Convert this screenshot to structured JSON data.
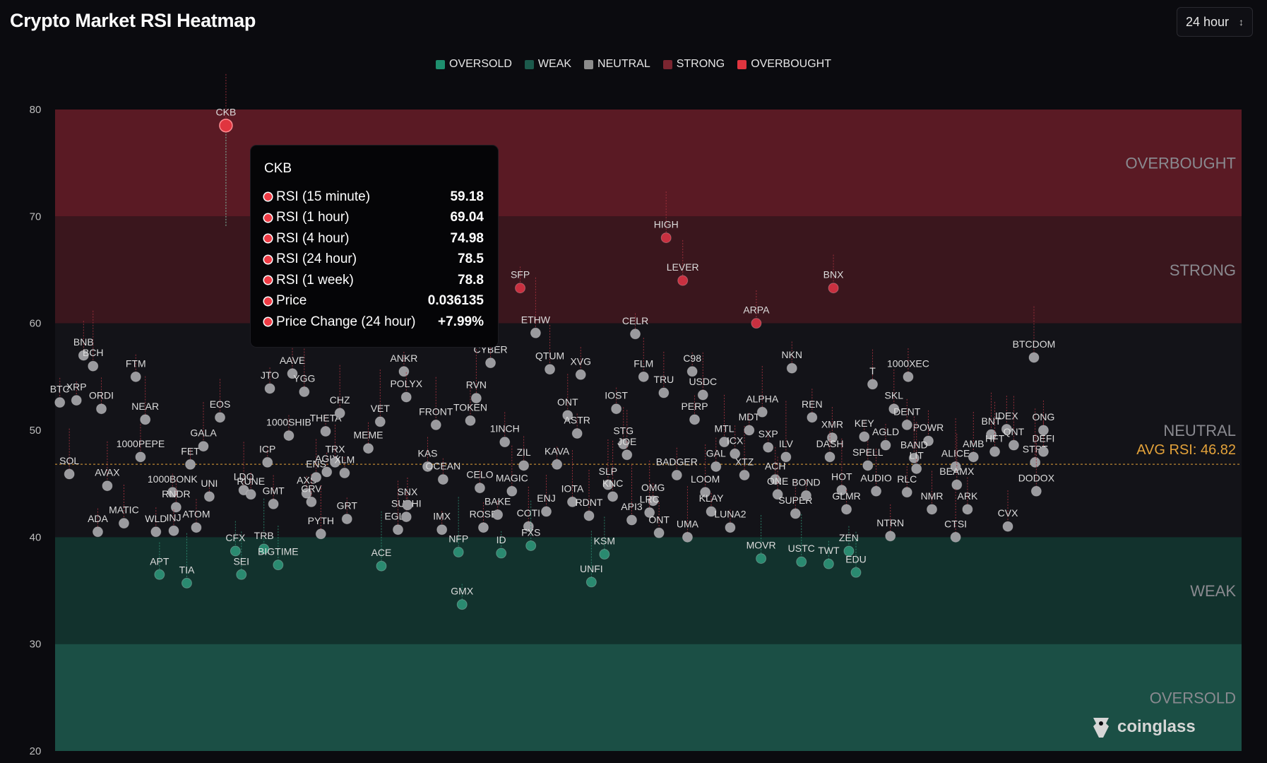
{
  "title": "Crypto Market RSI Heatmap",
  "period_selector": {
    "value": "24 hour"
  },
  "legend": [
    {
      "label": "OVERSOLD",
      "color": "#1e8f6e"
    },
    {
      "label": "WEAK",
      "color": "#1c5a4c"
    },
    {
      "label": "NEUTRAL",
      "color": "#8c8c8c"
    },
    {
      "label": "STRONG",
      "color": "#7a2530"
    },
    {
      "label": "OVERBOUGHT",
      "color": "#e0353f"
    }
  ],
  "tooltip": {
    "title": "CKB",
    "rows": [
      {
        "label": "RSI (15 minute)",
        "value": "59.18"
      },
      {
        "label": "RSI (1 hour)",
        "value": "69.04"
      },
      {
        "label": "RSI (4 hour)",
        "value": "74.98"
      },
      {
        "label": "RSI (24 hour)",
        "value": "78.5"
      },
      {
        "label": "RSI (1 week)",
        "value": "78.8"
      },
      {
        "label": "Price",
        "value": "0.036135"
      },
      {
        "label": "Price Change (24 hour)",
        "value": "+7.99%"
      }
    ]
  },
  "watermark": "coinglass",
  "chart_data": {
    "type": "scatter",
    "ylim": [
      20,
      80
    ],
    "yticks": [
      80,
      70,
      60,
      50,
      40,
      30,
      20
    ],
    "zones": [
      {
        "label": "OVERBOUGHT",
        "from": 70,
        "to": 80,
        "color": "#5a1a24"
      },
      {
        "label": "STRONG",
        "from": 60,
        "to": 70,
        "color": "#3a161d"
      },
      {
        "label": "NEUTRAL",
        "from": 40,
        "to": 60,
        "color": "#131318"
      },
      {
        "label": "WEAK",
        "from": 30,
        "to": 40,
        "color": "#12322d"
      },
      {
        "label": "OVERSOLD",
        "from": 20,
        "to": 30,
        "color": "#1b4f45"
      }
    ],
    "average": {
      "label": "AVG RSI:",
      "value": 46.82,
      "color": "#e3a23a"
    },
    "x_range": [
      0,
      100
    ],
    "points": [
      {
        "n": "CKB",
        "x": 14.4,
        "y": 78.5
      },
      {
        "n": "BTC",
        "x": 0.4,
        "y": 52.6
      },
      {
        "n": "XRP",
        "x": 1.8,
        "y": 52.8
      },
      {
        "n": "BNB",
        "x": 2.4,
        "y": 57.0
      },
      {
        "n": "BCH",
        "x": 3.2,
        "y": 56.0
      },
      {
        "n": "ORDI",
        "x": 3.9,
        "y": 52.0
      },
      {
        "n": "SOL",
        "x": 1.2,
        "y": 45.9
      },
      {
        "n": "AVAX",
        "x": 4.4,
        "y": 44.8
      },
      {
        "n": "ADA",
        "x": 3.6,
        "y": 40.5
      },
      {
        "n": "MATIC",
        "x": 5.8,
        "y": 41.3
      },
      {
        "n": "FTM",
        "x": 6.8,
        "y": 55.0
      },
      {
        "n": "NEAR",
        "x": 7.6,
        "y": 51.0
      },
      {
        "n": "1000PEPE",
        "x": 7.2,
        "y": 47.5
      },
      {
        "n": "1000BONK",
        "x": 9.9,
        "y": 44.2
      },
      {
        "n": "RNDR",
        "x": 10.2,
        "y": 42.8
      },
      {
        "n": "INJ",
        "x": 10.0,
        "y": 40.6
      },
      {
        "n": "WLD",
        "x": 8.5,
        "y": 40.5
      },
      {
        "n": "APT",
        "x": 8.8,
        "y": 36.5
      },
      {
        "n": "TIA",
        "x": 11.1,
        "y": 35.7
      },
      {
        "n": "ATOM",
        "x": 11.9,
        "y": 40.9
      },
      {
        "n": "UNI",
        "x": 13.0,
        "y": 43.8
      },
      {
        "n": "FET",
        "x": 11.4,
        "y": 46.8
      },
      {
        "n": "GALA",
        "x": 12.5,
        "y": 48.5
      },
      {
        "n": "EOS",
        "x": 13.9,
        "y": 51.2
      },
      {
        "n": "CFX",
        "x": 15.2,
        "y": 38.7
      },
      {
        "n": "SEI",
        "x": 15.7,
        "y": 36.5
      },
      {
        "n": "LDO",
        "x": 15.9,
        "y": 44.4
      },
      {
        "n": "RUNE",
        "x": 16.5,
        "y": 44.0
      },
      {
        "n": "TRB",
        "x": 17.6,
        "y": 38.9
      },
      {
        "n": "GMT",
        "x": 18.4,
        "y": 43.1
      },
      {
        "n": "ICP",
        "x": 17.9,
        "y": 47.0
      },
      {
        "n": "JTO",
        "x": 18.1,
        "y": 53.9
      },
      {
        "n": "1000SHIB",
        "x": 19.7,
        "y": 49.5
      },
      {
        "n": "BIGTIME",
        "x": 18.8,
        "y": 37.4
      },
      {
        "n": "AAVE",
        "x": 20.0,
        "y": 55.3
      },
      {
        "n": "YGG",
        "x": 21.0,
        "y": 53.6
      },
      {
        "n": "AXS",
        "x": 21.2,
        "y": 44.1
      },
      {
        "n": "CRV",
        "x": 21.6,
        "y": 43.3
      },
      {
        "n": "PYTH",
        "x": 22.4,
        "y": 40.3
      },
      {
        "n": "ENS",
        "x": 22.0,
        "y": 45.6
      },
      {
        "n": "AGIX",
        "x": 22.9,
        "y": 46.1
      },
      {
        "n": "THETA",
        "x": 22.8,
        "y": 49.9
      },
      {
        "n": "TRX",
        "x": 23.6,
        "y": 47.0
      },
      {
        "n": "XLM",
        "x": 24.4,
        "y": 46.0
      },
      {
        "n": "CHZ",
        "x": 24.0,
        "y": 51.6
      },
      {
        "n": "GRT",
        "x": 24.6,
        "y": 41.7
      },
      {
        "n": "MEME",
        "x": 26.4,
        "y": 48.3
      },
      {
        "n": "VET",
        "x": 27.4,
        "y": 50.8
      },
      {
        "n": "ACE",
        "x": 27.5,
        "y": 37.3
      },
      {
        "n": "EGLD",
        "x": 28.9,
        "y": 40.7
      },
      {
        "n": "SUSHI",
        "x": 29.6,
        "y": 41.9
      },
      {
        "n": "SNX",
        "x": 29.7,
        "y": 43.0
      },
      {
        "n": "KAS",
        "x": 31.4,
        "y": 46.6
      },
      {
        "n": "OCEAN",
        "x": 32.7,
        "y": 45.4
      },
      {
        "n": "ANKR",
        "x": 29.4,
        "y": 55.5
      },
      {
        "n": "POLYX",
        "x": 29.6,
        "y": 53.1
      },
      {
        "n": "FRONT",
        "x": 32.1,
        "y": 50.5
      },
      {
        "n": "TOKEN",
        "x": 35.0,
        "y": 50.9
      },
      {
        "n": "IMX",
        "x": 32.6,
        "y": 40.7
      },
      {
        "n": "NFP",
        "x": 34.0,
        "y": 38.6
      },
      {
        "n": "GMX",
        "x": 34.3,
        "y": 33.7
      },
      {
        "n": "CELO",
        "x": 35.8,
        "y": 44.6
      },
      {
        "n": "ROSE",
        "x": 36.1,
        "y": 40.9
      },
      {
        "n": "ID",
        "x": 37.6,
        "y": 38.5
      },
      {
        "n": "BAKE",
        "x": 37.3,
        "y": 42.1
      },
      {
        "n": "MAGIC",
        "x": 38.5,
        "y": 44.3
      },
      {
        "n": "COTI",
        "x": 39.9,
        "y": 41.0
      },
      {
        "n": "FXS",
        "x": 40.1,
        "y": 39.2
      },
      {
        "n": "ZIL",
        "x": 39.5,
        "y": 46.7
      },
      {
        "n": "1INCH",
        "x": 37.9,
        "y": 48.9
      },
      {
        "n": "CYBER",
        "x": 36.7,
        "y": 56.3
      },
      {
        "n": "RVN",
        "x": 35.5,
        "y": 53.0
      },
      {
        "n": "SFP",
        "x": 39.2,
        "y": 63.3
      },
      {
        "n": "ETHW",
        "x": 40.5,
        "y": 59.1
      },
      {
        "n": "QTUM",
        "x": 41.7,
        "y": 55.7
      },
      {
        "n": "XVG",
        "x": 44.3,
        "y": 55.2
      },
      {
        "n": "ONT",
        "x": 43.2,
        "y": 51.4
      },
      {
        "n": "ASTR",
        "x": 44.0,
        "y": 49.7
      },
      {
        "n": "KAVA",
        "x": 42.3,
        "y": 46.8
      },
      {
        "n": "ENJ",
        "x": 41.4,
        "y": 42.4
      },
      {
        "n": "IOTA",
        "x": 43.6,
        "y": 43.3
      },
      {
        "n": "RDNT",
        "x": 45.0,
        "y": 42.0
      },
      {
        "n": "UNFI",
        "x": 45.2,
        "y": 35.8
      },
      {
        "n": "KSM",
        "x": 46.3,
        "y": 38.4
      },
      {
        "n": "SLP",
        "x": 46.6,
        "y": 44.9
      },
      {
        "n": "KNC",
        "x": 47.0,
        "y": 43.8
      },
      {
        "n": "API3",
        "x": 48.6,
        "y": 41.6
      },
      {
        "n": "STG",
        "x": 47.9,
        "y": 48.7
      },
      {
        "n": "JOE",
        "x": 48.2,
        "y": 47.7
      },
      {
        "n": "IOST",
        "x": 47.3,
        "y": 52.0
      },
      {
        "n": "CELR",
        "x": 48.9,
        "y": 59.0
      },
      {
        "n": "FLM",
        "x": 49.6,
        "y": 55.0
      },
      {
        "n": "TRU",
        "x": 51.3,
        "y": 53.5
      },
      {
        "n": "OMG",
        "x": 50.4,
        "y": 43.4
      },
      {
        "n": "LRC",
        "x": 50.1,
        "y": 42.3
      },
      {
        "n": "ONT2",
        "x": 50.9,
        "y": 40.4
      },
      {
        "n": "HIGH",
        "x": 51.5,
        "y": 68.0
      },
      {
        "n": "LEVER",
        "x": 52.9,
        "y": 64.0
      },
      {
        "n": "C98",
        "x": 53.7,
        "y": 55.5
      },
      {
        "n": "USDC",
        "x": 54.6,
        "y": 53.3
      },
      {
        "n": "PERP",
        "x": 53.9,
        "y": 51.0
      },
      {
        "n": "BADGER",
        "x": 52.4,
        "y": 45.8
      },
      {
        "n": "UMA",
        "x": 53.3,
        "y": 40.0
      },
      {
        "n": "LOOM",
        "x": 54.8,
        "y": 44.2
      },
      {
        "n": "KLAY",
        "x": 55.3,
        "y": 42.4
      },
      {
        "n": "LUNA2",
        "x": 56.9,
        "y": 40.9
      },
      {
        "n": "GAL",
        "x": 55.7,
        "y": 46.6
      },
      {
        "n": "MTL",
        "x": 56.4,
        "y": 48.9
      },
      {
        "n": "ICX",
        "x": 57.3,
        "y": 47.8
      },
      {
        "n": "XTZ",
        "x": 58.1,
        "y": 45.8
      },
      {
        "n": "MDT",
        "x": 58.5,
        "y": 50.0
      },
      {
        "n": "ALPHA",
        "x": 59.6,
        "y": 51.7
      },
      {
        "n": "SXP",
        "x": 60.1,
        "y": 48.4
      },
      {
        "n": "ARPA",
        "x": 59.1,
        "y": 60.0
      },
      {
        "n": "NKN",
        "x": 62.1,
        "y": 55.8
      },
      {
        "n": "ILV",
        "x": 61.6,
        "y": 47.5
      },
      {
        "n": "ACH",
        "x": 60.7,
        "y": 45.4
      },
      {
        "n": "ONE",
        "x": 60.9,
        "y": 44.0
      },
      {
        "n": "MOVR",
        "x": 59.5,
        "y": 38.0
      },
      {
        "n": "SUPER",
        "x": 62.4,
        "y": 42.2
      },
      {
        "n": "BOND",
        "x": 63.3,
        "y": 43.9
      },
      {
        "n": "USTC",
        "x": 62.9,
        "y": 37.7
      },
      {
        "n": "TWT",
        "x": 65.2,
        "y": 37.5
      },
      {
        "n": "REN",
        "x": 63.8,
        "y": 51.2
      },
      {
        "n": "XMR",
        "x": 65.5,
        "y": 49.3
      },
      {
        "n": "DASH",
        "x": 65.3,
        "y": 47.5
      },
      {
        "n": "BNX",
        "x": 65.6,
        "y": 63.3
      },
      {
        "n": "HOT",
        "x": 66.3,
        "y": 44.4
      },
      {
        "n": "GLMR",
        "x": 66.7,
        "y": 42.6
      },
      {
        "n": "ZEN",
        "x": 66.9,
        "y": 38.7
      },
      {
        "n": "EDU",
        "x": 67.5,
        "y": 36.7
      },
      {
        "n": "KEY",
        "x": 68.2,
        "y": 49.4
      },
      {
        "n": "SPELL",
        "x": 68.5,
        "y": 46.7
      },
      {
        "n": "T",
        "x": 68.9,
        "y": 54.3
      },
      {
        "n": "AGLD",
        "x": 70.0,
        "y": 48.6
      },
      {
        "n": "AUDIO",
        "x": 69.2,
        "y": 44.3
      },
      {
        "n": "NTRN",
        "x": 70.4,
        "y": 40.1
      },
      {
        "n": "SKL",
        "x": 70.7,
        "y": 52.0
      },
      {
        "n": "1000XEC",
        "x": 71.9,
        "y": 55.0
      },
      {
        "n": "DENT",
        "x": 71.8,
        "y": 50.5
      },
      {
        "n": "POWR",
        "x": 73.6,
        "y": 49.0
      },
      {
        "n": "BAND",
        "x": 72.4,
        "y": 47.4
      },
      {
        "n": "RLC",
        "x": 71.8,
        "y": 44.2
      },
      {
        "n": "LIT",
        "x": 72.6,
        "y": 46.4
      },
      {
        "n": "NMR",
        "x": 73.9,
        "y": 42.6
      },
      {
        "n": "ALICE",
        "x": 75.9,
        "y": 46.6
      },
      {
        "n": "BEAMX",
        "x": 76.0,
        "y": 44.9
      },
      {
        "n": "ARK",
        "x": 76.9,
        "y": 42.6
      },
      {
        "n": "CTSI",
        "x": 75.9,
        "y": 40.0
      },
      {
        "n": "AMB",
        "x": 77.4,
        "y": 47.5
      },
      {
        "n": "BNT",
        "x": 78.9,
        "y": 49.6
      },
      {
        "n": "HFT",
        "x": 79.2,
        "y": 48.0
      },
      {
        "n": "IDEX",
        "x": 80.2,
        "y": 50.1
      },
      {
        "n": "QNT",
        "x": 80.8,
        "y": 48.6
      },
      {
        "n": "STPT",
        "x": 82.6,
        "y": 47.0
      },
      {
        "n": "DEFI",
        "x": 83.3,
        "y": 48.0
      },
      {
        "n": "ONG",
        "x": 83.3,
        "y": 50.0
      },
      {
        "n": "DODOX",
        "x": 82.7,
        "y": 44.3
      },
      {
        "n": "CVX",
        "x": 80.3,
        "y": 41.0
      },
      {
        "n": "BTCDOM",
        "x": 82.5,
        "y": 56.8
      }
    ]
  }
}
